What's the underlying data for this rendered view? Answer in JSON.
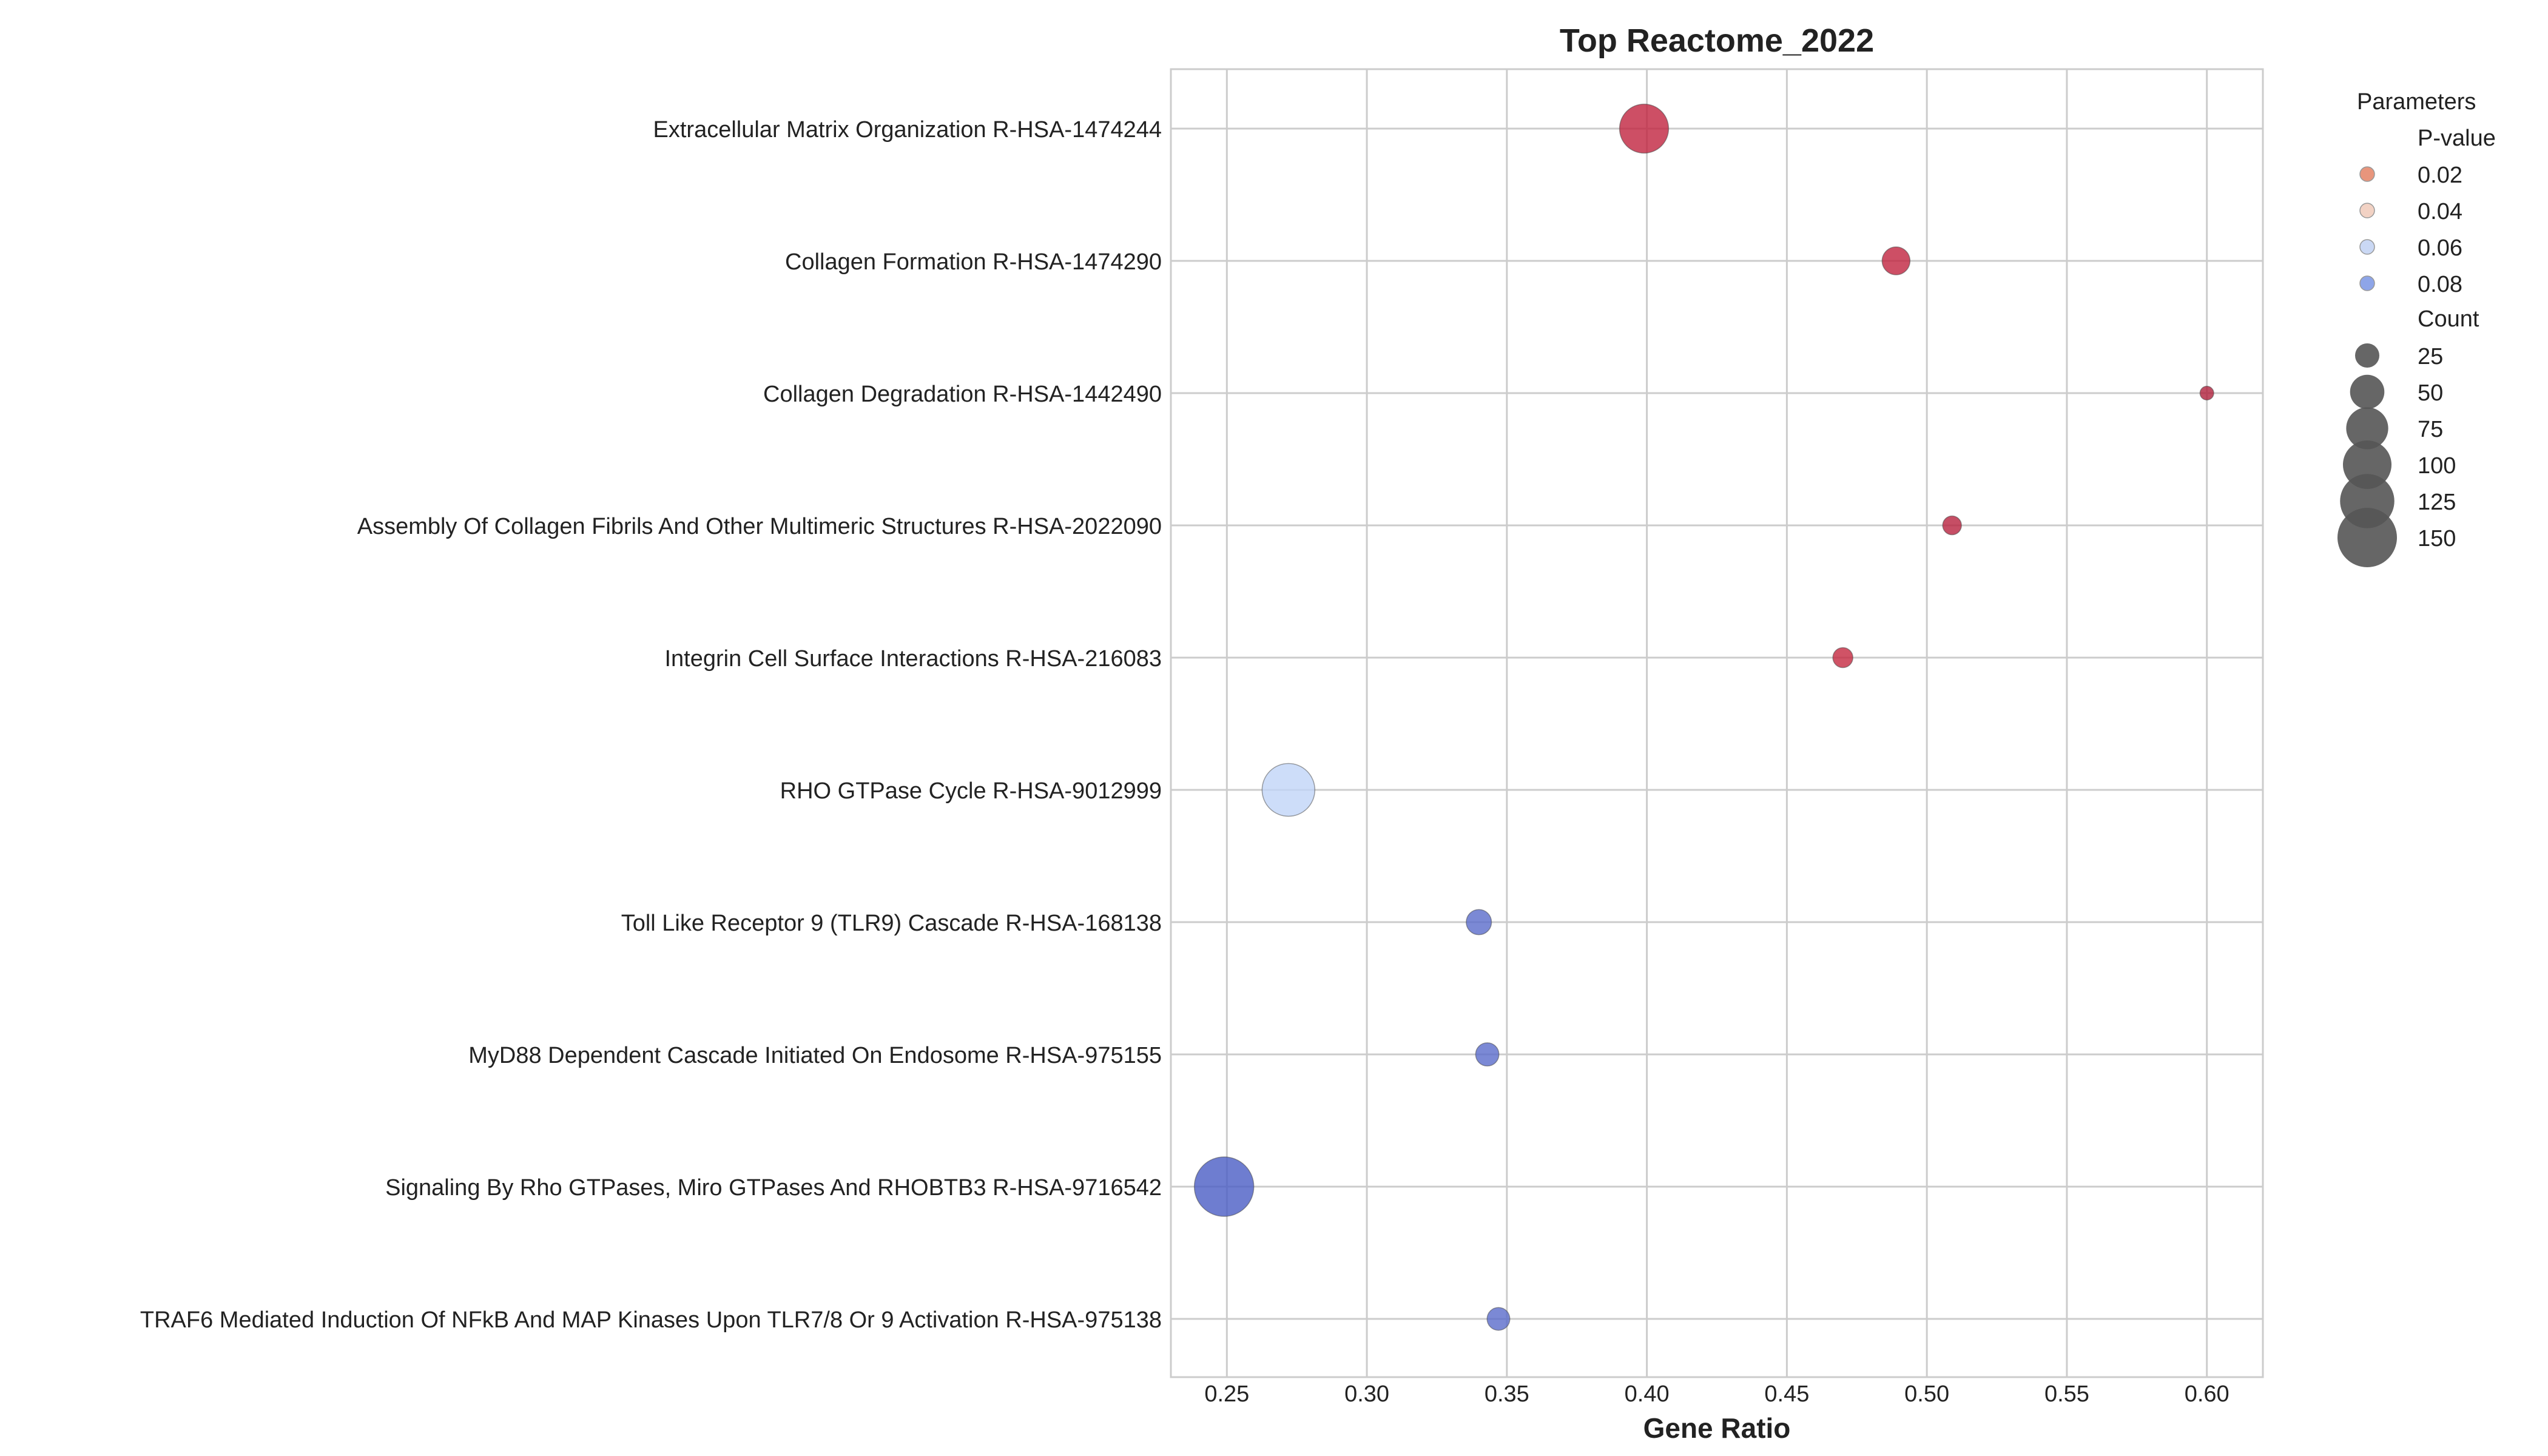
{
  "chart_data": {
    "type": "scatter",
    "title": "Top Reactome_2022",
    "xlabel": "Gene Ratio",
    "ylabel": "",
    "xlim": [
      0.23,
      0.62
    ],
    "xticks": [
      0.25,
      0.3,
      0.35,
      0.4,
      0.45,
      0.5,
      0.55,
      0.6
    ],
    "xtick_labels": [
      "0.25",
      "0.30",
      "0.35",
      "0.40",
      "0.45",
      "0.50",
      "0.55",
      "0.60"
    ],
    "grid": true,
    "legend": {
      "title": "Parameters",
      "placement": "outside-top-right",
      "color_title": "P-value",
      "color_entries": [
        {
          "label": "0.02",
          "color": "#e8957c"
        },
        {
          "label": "0.04",
          "color": "#f2d2c4"
        },
        {
          "label": "0.06",
          "color": "#cad8f4"
        },
        {
          "label": "0.08",
          "color": "#8ea5e8"
        }
      ],
      "size_title": "Count",
      "size_entries": [
        {
          "label": "25",
          "count": 25
        },
        {
          "label": "50",
          "count": 50
        },
        {
          "label": "75",
          "count": 75
        },
        {
          "label": "100",
          "count": 100
        },
        {
          "label": "125",
          "count": 125
        },
        {
          "label": "150",
          "count": 150
        }
      ]
    },
    "points": [
      {
        "term": "Extracellular Matrix Organization R-HSA-1474244",
        "x": 0.399,
        "count": 102,
        "color": "#c0233f"
      },
      {
        "term": "Collagen Formation R-HSA-1474290",
        "x": 0.489,
        "count": 33,
        "color": "#c0233f"
      },
      {
        "term": "Collagen Degradation R-HSA-1442490",
        "x": 0.6,
        "count": 8,
        "color": "#b0203c"
      },
      {
        "term": "Assembly Of Collagen Fibrils And Other Multimeric Structures R-HSA-2022090",
        "x": 0.509,
        "count": 15,
        "color": "#b8223e"
      },
      {
        "term": "Integrin Cell Surface Interactions R-HSA-216083",
        "x": 0.47,
        "count": 17,
        "color": "#c42840"
      },
      {
        "term": "RHO GTPase Cycle R-HSA-9012999",
        "x": 0.272,
        "count": 118,
        "color": "#c0d4f8"
      },
      {
        "term": "Toll Like Receptor 9 (TLR9) Cascade R-HSA-168138",
        "x": 0.34,
        "count": 27,
        "color": "#5a6bcb"
      },
      {
        "term": "MyD88 Dependent Cascade Initiated On Endosome R-HSA-975155",
        "x": 0.343,
        "count": 23,
        "color": "#5a6bcb"
      },
      {
        "term": "Signaling By Rho GTPases, Miro GTPases And RHOBTB3 R-HSA-9716542",
        "x": 0.249,
        "count": 150,
        "color": "#4a5cc4"
      },
      {
        "term": "TRAF6 Mediated Induction Of NFkB And MAP Kinases Upon TLR7/8 Or 9 Activation R-HSA-975138",
        "x": 0.347,
        "count": 22,
        "color": "#5a6bcb"
      }
    ]
  }
}
